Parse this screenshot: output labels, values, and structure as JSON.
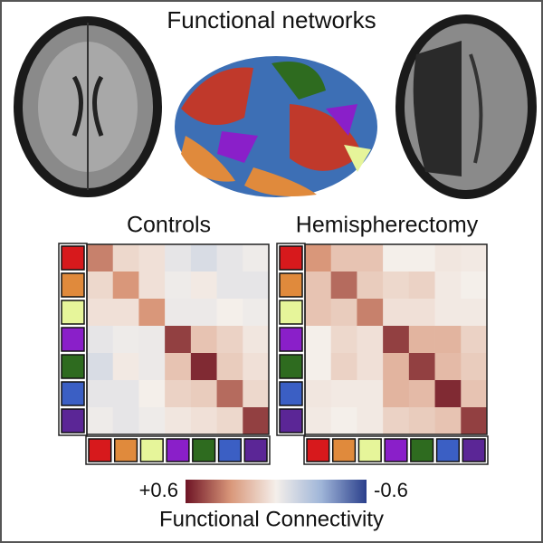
{
  "title": "Functional networks",
  "network_colors": [
    "#d7191c",
    "#e08a3c",
    "#e6f59a",
    "#8a1fc9",
    "#2e6b1f",
    "#3b5fc4",
    "#5b2696"
  ],
  "colorscale": [
    "#2b3f8c",
    "#9fb5d8",
    "#f4efea",
    "#d9977a",
    "#6e1425"
  ],
  "chart_data": [
    {
      "type": "heatmap",
      "title": "Controls",
      "values": [
        [
          0.35,
          0.08,
          0.05,
          -0.05,
          -0.1,
          -0.05,
          -0.02
        ],
        [
          0.08,
          0.3,
          0.05,
          -0.02,
          0.02,
          -0.05,
          -0.05
        ],
        [
          0.05,
          0.05,
          0.3,
          -0.03,
          -0.03,
          0,
          -0.02
        ],
        [
          -0.05,
          -0.02,
          -0.03,
          0.5,
          0.15,
          0.1,
          0.03
        ],
        [
          -0.1,
          0.02,
          -0.03,
          0.15,
          0.55,
          0.12,
          0.05
        ],
        [
          -0.05,
          -0.05,
          0,
          0.1,
          0.12,
          0.4,
          0.08
        ],
        [
          -0.02,
          -0.05,
          -0.02,
          0.03,
          0.05,
          0.08,
          0.5
        ]
      ]
    },
    {
      "type": "heatmap",
      "title": "Hemispherectomy",
      "values": [
        [
          0.3,
          0.15,
          0.15,
          0,
          0,
          0.03,
          0.02
        ],
        [
          0.15,
          0.4,
          0.12,
          0.08,
          0.1,
          0.02,
          0
        ],
        [
          0.15,
          0.12,
          0.35,
          0.05,
          0.05,
          0.02,
          0.02
        ],
        [
          0,
          0.08,
          0.05,
          0.5,
          0.2,
          0.2,
          0.1
        ],
        [
          0,
          0.1,
          0.05,
          0.2,
          0.5,
          0.18,
          0.12
        ],
        [
          0.03,
          0.02,
          0.02,
          0.2,
          0.18,
          0.55,
          0.15
        ],
        [
          0.02,
          0,
          0.02,
          0.1,
          0.12,
          0.15,
          0.5
        ]
      ]
    }
  ],
  "colorbar": {
    "label": "Functional Connectivity",
    "lim": [
      0.6,
      -0.6
    ],
    "ticks": [
      {
        "value": 0.6,
        "label": "+0.6"
      },
      -0.6
    ]
  }
}
